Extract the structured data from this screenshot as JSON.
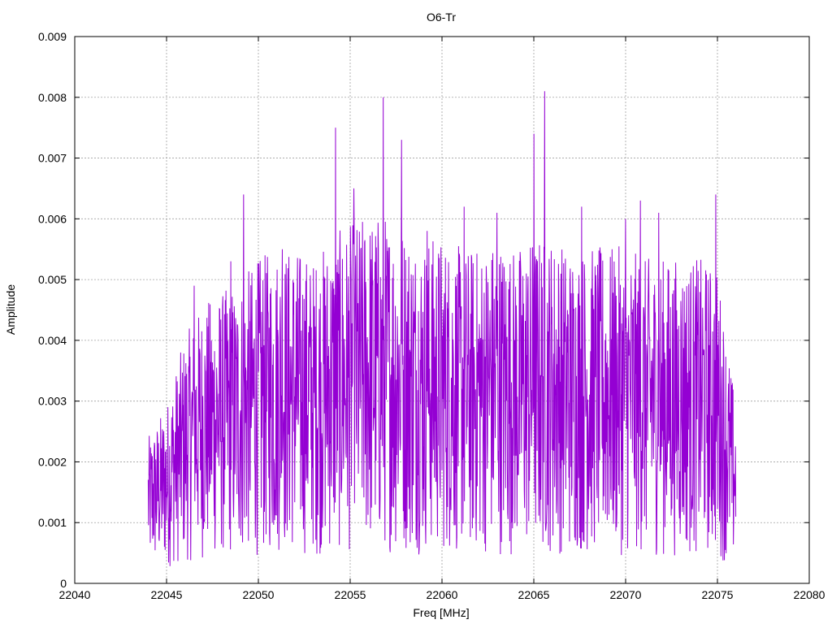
{
  "chart_data": {
    "type": "line",
    "title": "O6-Tr",
    "xlabel": "Freq [MHz]",
    "ylabel": "Amplitude",
    "xlim": [
      22040,
      22080
    ],
    "ylim": [
      0,
      0.009
    ],
    "x_ticks": [
      22040,
      22045,
      22050,
      22055,
      22060,
      22065,
      22070,
      22075,
      22080
    ],
    "x_tick_labels": [
      "22040",
      "22045",
      "22050",
      "22055",
      "22060",
      "22065",
      "22070",
      "22075",
      "22080"
    ],
    "y_ticks": [
      0,
      0.001,
      0.002,
      0.003,
      0.004,
      0.005,
      0.006,
      0.007,
      0.008,
      0.009
    ],
    "y_tick_labels": [
      "0",
      "0.001",
      "0.002",
      "0.003",
      "0.004",
      "0.005",
      "0.006",
      "0.007",
      "0.008",
      "0.009"
    ],
    "grid": true,
    "series": [
      {
        "color": "#9400d3",
        "x_start": 22044.0,
        "x_end": 22076.0,
        "envelope": [
          [
            22044.0,
            0.0013
          ],
          [
            22045.0,
            0.0016
          ],
          [
            22046.0,
            0.0022
          ],
          [
            22047.0,
            0.0025
          ],
          [
            22048.0,
            0.0026
          ],
          [
            22049.0,
            0.0027
          ],
          [
            22050.0,
            0.0029
          ],
          [
            22051.0,
            0.003
          ],
          [
            22052.0,
            0.003
          ],
          [
            22053.0,
            0.0029
          ],
          [
            22054.0,
            0.0031
          ],
          [
            22055.0,
            0.0032
          ],
          [
            22056.0,
            0.0033
          ],
          [
            22057.0,
            0.0033
          ],
          [
            22058.0,
            0.0032
          ],
          [
            22059.0,
            0.0031
          ],
          [
            22060.0,
            0.0031
          ],
          [
            22061.0,
            0.003
          ],
          [
            22062.0,
            0.003
          ],
          [
            22063.0,
            0.0031
          ],
          [
            22064.0,
            0.003
          ],
          [
            22065.0,
            0.0031
          ],
          [
            22066.0,
            0.0031
          ],
          [
            22067.0,
            0.003
          ],
          [
            22068.0,
            0.003
          ],
          [
            22069.0,
            0.003
          ],
          [
            22070.0,
            0.003
          ],
          [
            22071.0,
            0.0029
          ],
          [
            22072.0,
            0.0029
          ],
          [
            22073.0,
            0.0029
          ],
          [
            22074.0,
            0.0029
          ],
          [
            22075.0,
            0.0028
          ],
          [
            22076.0,
            0.0016
          ]
        ],
        "peaks": [
          [
            22046.5,
            0.0049
          ],
          [
            22048.5,
            0.0053
          ],
          [
            22049.2,
            0.0064
          ],
          [
            22051.3,
            0.0055
          ],
          [
            22054.2,
            0.0075
          ],
          [
            22055.2,
            0.0065
          ],
          [
            22056.8,
            0.008
          ],
          [
            22057.8,
            0.0073
          ],
          [
            22059.2,
            0.0058
          ],
          [
            22061.2,
            0.0062
          ],
          [
            22063.0,
            0.0061
          ],
          [
            22065.0,
            0.0074
          ],
          [
            22065.6,
            0.0081
          ],
          [
            22067.6,
            0.0062
          ],
          [
            22070.0,
            0.006
          ],
          [
            22070.8,
            0.0063
          ],
          [
            22071.8,
            0.0061
          ],
          [
            22074.9,
            0.0064
          ]
        ]
      }
    ]
  }
}
